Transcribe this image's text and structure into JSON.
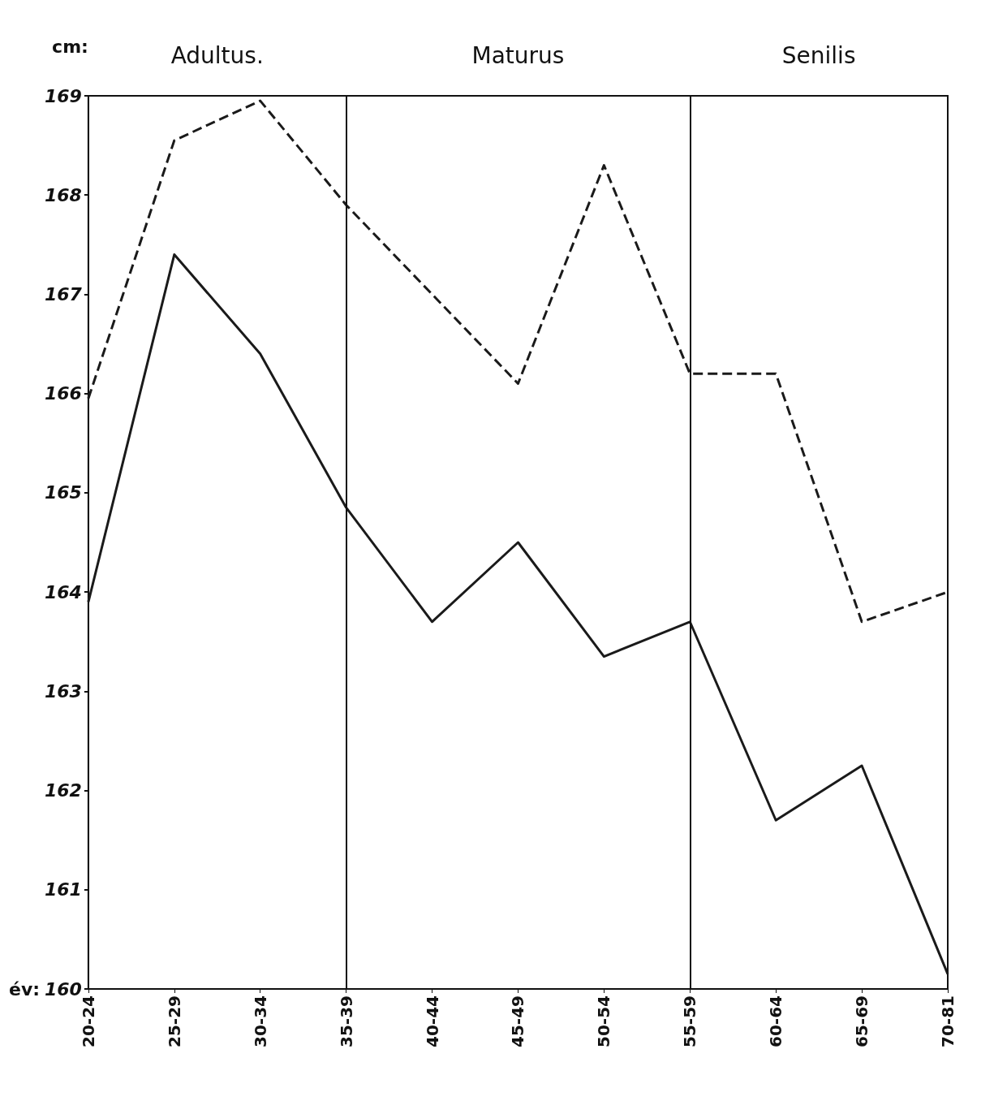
{
  "chart_data": {
    "type": "line",
    "xlabel": "év:",
    "ylabel": "cm:",
    "categories": [
      "20-24",
      "25-29",
      "30-34",
      "35-39",
      "40-44",
      "45-49",
      "50-54",
      "55-59",
      "60-64",
      "65-69",
      "70-81"
    ],
    "series": [
      {
        "color": "#1a1a1a",
        "line_style": "dashed",
        "values": [
          165.95,
          168.55,
          168.95,
          167.9,
          167.0,
          166.1,
          168.3,
          166.2,
          166.2,
          163.7,
          164.0
        ]
      },
      {
        "color": "#1a1a1a",
        "line_style": "solid",
        "values": [
          163.9,
          167.4,
          166.4,
          164.85,
          163.7,
          164.5,
          163.35,
          163.7,
          161.7,
          162.25,
          160.15
        ]
      }
    ],
    "ref_lines": [
      {
        "axis": "x",
        "value": "35-39"
      },
      {
        "axis": "x",
        "value": "55-59"
      }
    ],
    "annotations": [
      "Adultus.",
      "Maturus",
      "Senilis"
    ],
    "ylim": [
      160,
      169
    ],
    "yticks": [
      160,
      161,
      162,
      163,
      164,
      165,
      166,
      167,
      168,
      169
    ],
    "grid": false,
    "marker": "none"
  }
}
